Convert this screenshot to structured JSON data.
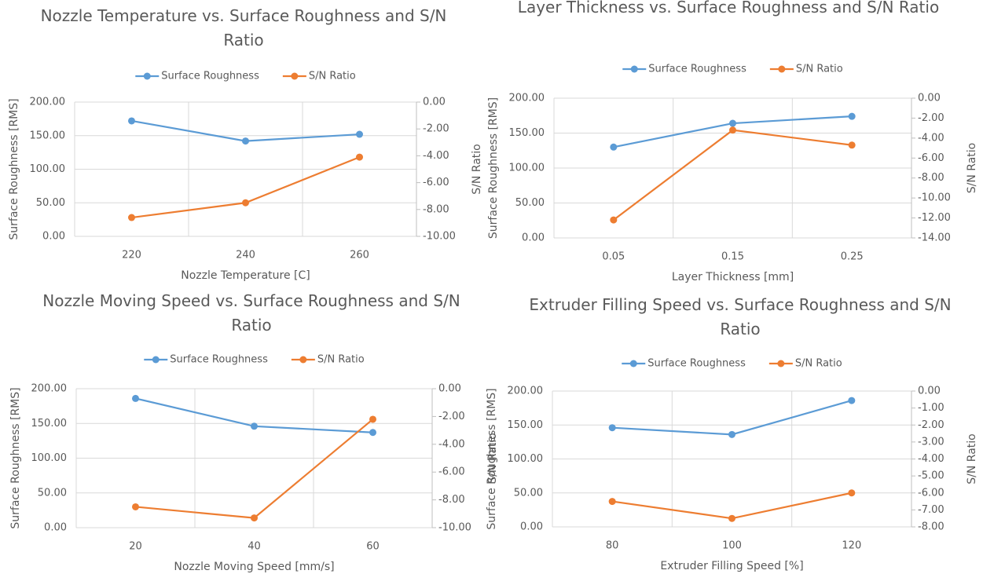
{
  "chart_data": [
    {
      "type": "line",
      "title": "Nozzle Temperature vs. Surface Roughness and S/N Ratio",
      "x_label": "Nozzle Temperature [C]",
      "y_label": "Surface Roughness [RMS]",
      "y2_label": "S/N Ratio",
      "categories": [
        "220",
        "240",
        "260"
      ],
      "series": [
        {
          "name": "Surface Roughness",
          "color": "#5b9bd5",
          "values": [
            172,
            142,
            152
          ]
        },
        {
          "name": "S/N Ratio",
          "color": "#ed7d31",
          "axis": "y2",
          "values": [
            -8.6,
            -7.5,
            -4.1
          ]
        }
      ],
      "ylim": [
        0,
        200
      ],
      "yticks": [
        {
          "value": 0,
          "label": "0.00"
        },
        {
          "value": 50,
          "label": "50.00"
        },
        {
          "value": 100,
          "label": "100.00"
        },
        {
          "value": 150,
          "label": "150.00"
        },
        {
          "value": 200,
          "label": "200.00"
        }
      ],
      "y2lim": [
        -10,
        0
      ],
      "y2ticks": [
        {
          "value": -10,
          "label": "-10.00"
        },
        {
          "value": -8,
          "label": "-8.00"
        },
        {
          "value": -6,
          "label": "-6.00"
        },
        {
          "value": -4,
          "label": "-4.00"
        },
        {
          "value": -2,
          "label": "-2.00"
        },
        {
          "value": 0,
          "label": "0.00"
        }
      ],
      "grid": true,
      "legend": "top"
    },
    {
      "type": "line",
      "title": "Layer Thickness vs. Surface Roughness and S/N Ratio",
      "x_label": "Layer Thickness [mm]",
      "y_label": "Surface Roughness [RMS]",
      "y2_label": "S/N Ratio",
      "categories": [
        "0.05",
        "0.15",
        "0.25"
      ],
      "series": [
        {
          "name": "Surface Roughness",
          "color": "#5b9bd5",
          "values": [
            130,
            164,
            174
          ]
        },
        {
          "name": "S/N Ratio",
          "color": "#ed7d31",
          "axis": "y2",
          "values": [
            -12.2,
            -3.2,
            -4.7
          ]
        }
      ],
      "ylim": [
        0,
        200
      ],
      "yticks": [
        {
          "value": 0,
          "label": "0.00"
        },
        {
          "value": 50,
          "label": "50.00"
        },
        {
          "value": 100,
          "label": "100.00"
        },
        {
          "value": 150,
          "label": "150.00"
        },
        {
          "value": 200,
          "label": "200.00"
        }
      ],
      "y2lim": [
        -14,
        0
      ],
      "y2ticks": [
        {
          "value": -14,
          "label": "-14.00"
        },
        {
          "value": -12,
          "label": "-12.00"
        },
        {
          "value": -10,
          "label": "-10.00"
        },
        {
          "value": -8,
          "label": "-8.00"
        },
        {
          "value": -6,
          "label": "-6.00"
        },
        {
          "value": -4,
          "label": "-4.00"
        },
        {
          "value": -2,
          "label": "-2.00"
        },
        {
          "value": 0,
          "label": "0.00"
        }
      ],
      "grid": true,
      "legend": "top"
    },
    {
      "type": "line",
      "title": "Nozzle Moving Speed vs. Surface Roughness and S/N Ratio",
      "x_label": "Nozzle Moving Speed [mm/s]",
      "y_label": "Surface Roughness [RMS]",
      "y2_label": "S/N Ratio",
      "categories": [
        "20",
        "40",
        "60"
      ],
      "series": [
        {
          "name": "Surface Roughness",
          "color": "#5b9bd5",
          "values": [
            186,
            146,
            137
          ]
        },
        {
          "name": "S/N Ratio",
          "color": "#ed7d31",
          "axis": "y2",
          "values": [
            -8.5,
            -9.3,
            -2.2
          ]
        }
      ],
      "ylim": [
        0,
        200
      ],
      "yticks": [
        {
          "value": 0,
          "label": "0.00"
        },
        {
          "value": 50,
          "label": "50.00"
        },
        {
          "value": 100,
          "label": "100.00"
        },
        {
          "value": 150,
          "label": "150.00"
        },
        {
          "value": 200,
          "label": "200.00"
        }
      ],
      "y2lim": [
        -10,
        0
      ],
      "y2ticks": [
        {
          "value": -10,
          "label": "-10.00"
        },
        {
          "value": -8,
          "label": "-8.00"
        },
        {
          "value": -6,
          "label": "-6.00"
        },
        {
          "value": -4,
          "label": "-4.00"
        },
        {
          "value": -2,
          "label": "-2.00"
        },
        {
          "value": 0,
          "label": "0.00"
        }
      ],
      "grid": true,
      "legend": "top"
    },
    {
      "type": "line",
      "title": "Extruder Filling Speed vs. Surface Roughness and S/N Ratio",
      "x_label": "Extruder Filling Speed [%]",
      "y_label": "Surface Roughness [RMS]",
      "y2_label": "S/N Ratio",
      "categories": [
        "80",
        "100",
        "120"
      ],
      "series": [
        {
          "name": "Surface Roughness",
          "color": "#5b9bd5",
          "values": [
            146,
            136,
            186
          ]
        },
        {
          "name": "S/N Ratio",
          "color": "#ed7d31",
          "axis": "y2",
          "values": [
            -6.5,
            -7.5,
            -6.0
          ]
        }
      ],
      "ylim": [
        0,
        200
      ],
      "yticks": [
        {
          "value": 0,
          "label": "0.00"
        },
        {
          "value": 50,
          "label": "50.00"
        },
        {
          "value": 100,
          "label": "100.00"
        },
        {
          "value": 150,
          "label": "150.00"
        },
        {
          "value": 200,
          "label": "200.00"
        }
      ],
      "y2lim": [
        -8,
        0
      ],
      "y2ticks": [
        {
          "value": -8,
          "label": "-8.00"
        },
        {
          "value": -7,
          "label": "-7.00"
        },
        {
          "value": -6,
          "label": "-6.00"
        },
        {
          "value": -5,
          "label": "-5.00"
        },
        {
          "value": -4,
          "label": "-4.00"
        },
        {
          "value": -3,
          "label": "-3.00"
        },
        {
          "value": -2,
          "label": "-2.00"
        },
        {
          "value": -1,
          "label": "-1.00"
        },
        {
          "value": 0,
          "label": "0.00"
        }
      ],
      "grid": true,
      "legend": "top"
    }
  ]
}
